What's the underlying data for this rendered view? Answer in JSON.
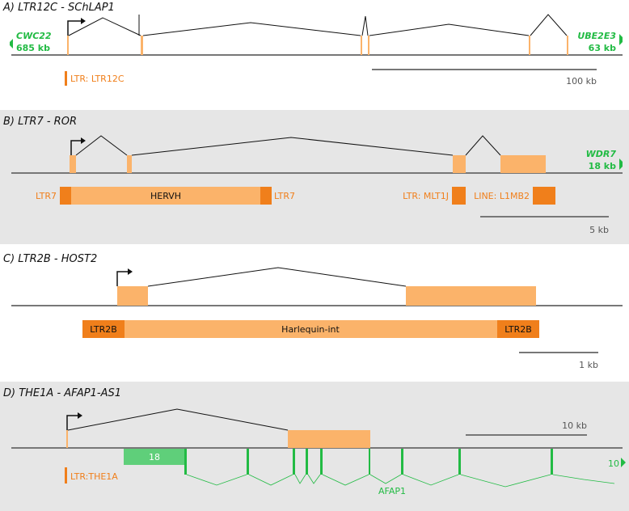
{
  "colors": {
    "exon": "#fbb36a",
    "ltr": "#f07f1b",
    "gene_green": "#22bb44",
    "axis": "#777777",
    "panel_bg": "#e6e6e6"
  },
  "panelA": {
    "title": "A) LTR12C - SChLAP1",
    "left_gene": "CWC22",
    "left_dist": "685 kb",
    "right_gene": "UBE2E3",
    "right_dist": "63 kb",
    "ltr_label": "LTR: LTR12C",
    "scale_label": "100 kb"
  },
  "panelB": {
    "title": "B) LTR7 - ROR",
    "right_gene": "WDR7",
    "right_dist": "18 kb",
    "ltr7_left": "LTR7",
    "hervh": "HERVH",
    "ltr7_right": "LTR7",
    "mlt1j": "LTR: MLT1J",
    "l1mb2": "LINE: L1MB2",
    "scale_label": "5 kb"
  },
  "panelC": {
    "title": "C) LTR2B - HOST2",
    "ltr2b_left": "LTR2B",
    "internal": "Harlequin-int",
    "ltr2b_right": "LTR2B",
    "scale_label": "1 kb"
  },
  "panelD": {
    "title": "D) THE1A - AFAP1-AS1",
    "ltr_label": "LTR:THE1A",
    "exon_count": "18",
    "gene_name": "AFAP1",
    "right_label": "10",
    "scale_label": "10 kb"
  }
}
